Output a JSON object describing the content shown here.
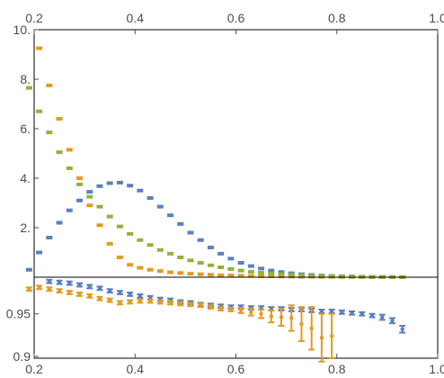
{
  "chart_data": [
    {
      "type": "scatter",
      "panel": "top",
      "xlim": [
        0.2,
        1.0
      ],
      "ylim": [
        0,
        10
      ],
      "x_ticks": [
        "0.2",
        "0.4",
        "0.6",
        "0.8",
        "1.0"
      ],
      "y_ticks": [
        "2.",
        "4.",
        "6.",
        "8.",
        "10."
      ],
      "x_tick_position": "top",
      "grid": false,
      "series": [
        {
          "color": "#5b7fbf",
          "x": [
            0.19,
            0.21,
            0.23,
            0.25,
            0.27,
            0.29,
            0.31,
            0.33,
            0.35,
            0.37,
            0.39,
            0.41,
            0.43,
            0.45,
            0.47,
            0.49,
            0.51,
            0.53,
            0.55,
            0.57,
            0.59,
            0.61,
            0.63,
            0.65,
            0.67,
            0.69,
            0.71,
            0.73,
            0.75,
            0.77,
            0.79,
            0.81,
            0.83,
            0.85,
            0.87,
            0.89,
            0.91,
            0.93
          ],
          "y": [
            0.3,
            1.0,
            1.6,
            2.2,
            2.7,
            3.1,
            3.45,
            3.68,
            3.8,
            3.82,
            3.7,
            3.5,
            3.2,
            2.85,
            2.5,
            2.15,
            1.8,
            1.5,
            1.2,
            0.95,
            0.75,
            0.58,
            0.45,
            0.35,
            0.27,
            0.21,
            0.16,
            0.12,
            0.09,
            0.07,
            0.05,
            0.04,
            0.03,
            0.02,
            0.015,
            0.01,
            0.008,
            0.005
          ]
        },
        {
          "color": "#e39b1e",
          "x": [
            0.21,
            0.23,
            0.25,
            0.27,
            0.29,
            0.31,
            0.33,
            0.35,
            0.37,
            0.39,
            0.41,
            0.43,
            0.45,
            0.47,
            0.49,
            0.51,
            0.53,
            0.55,
            0.57,
            0.59,
            0.61,
            0.63,
            0.65,
            0.67,
            0.69,
            0.71,
            0.73,
            0.75,
            0.77,
            0.79,
            0.81,
            0.83,
            0.85,
            0.87,
            0.89,
            0.91,
            0.93
          ],
          "y": [
            9.25,
            7.75,
            6.4,
            5.15,
            4.0,
            2.9,
            2.1,
            1.35,
            0.8,
            0.5,
            0.38,
            0.3,
            0.25,
            0.2,
            0.17,
            0.14,
            0.12,
            0.1,
            0.08,
            0.07,
            0.06,
            0.05,
            0.04,
            0.035,
            0.03,
            0.025,
            0.02,
            0.018,
            0.015,
            0.012,
            0.01,
            0.008,
            0.006,
            0.005,
            0.004,
            0.003,
            0.002
          ]
        },
        {
          "color": "#8eb33b",
          "x": [
            0.19,
            0.21,
            0.23,
            0.25,
            0.27,
            0.29,
            0.31,
            0.33,
            0.35,
            0.37,
            0.39,
            0.41,
            0.43,
            0.45,
            0.47,
            0.49,
            0.51,
            0.53,
            0.55,
            0.57,
            0.59,
            0.61,
            0.63,
            0.65,
            0.67,
            0.69,
            0.71,
            0.73,
            0.75,
            0.77,
            0.79,
            0.81,
            0.83,
            0.85,
            0.87,
            0.89,
            0.91,
            0.93
          ],
          "y": [
            7.65,
            6.7,
            5.85,
            5.05,
            4.4,
            3.75,
            3.25,
            2.85,
            2.45,
            2.05,
            1.75,
            1.5,
            1.3,
            1.1,
            0.95,
            0.8,
            0.68,
            0.58,
            0.48,
            0.4,
            0.33,
            0.27,
            0.22,
            0.18,
            0.15,
            0.12,
            0.1,
            0.08,
            0.06,
            0.05,
            0.04,
            0.03,
            0.025,
            0.02,
            0.015,
            0.01,
            0.008,
            0.005
          ]
        }
      ]
    },
    {
      "type": "scatter",
      "panel": "bottom",
      "xlim": [
        0.2,
        1.0
      ],
      "ylim": [
        0.898,
        0.993
      ],
      "x_ticks": [
        "0.2",
        "0.4",
        "0.6",
        "0.8",
        "1.0"
      ],
      "y_ticks": [
        "0.9",
        "0.95"
      ],
      "x_tick_position": "bottom",
      "grid": false,
      "series": [
        {
          "color": "#5b7fbf",
          "x": [
            0.23,
            0.25,
            0.27,
            0.29,
            0.31,
            0.33,
            0.35,
            0.37,
            0.39,
            0.41,
            0.43,
            0.45,
            0.47,
            0.49,
            0.51,
            0.53,
            0.55,
            0.57,
            0.59,
            0.61,
            0.63,
            0.65,
            0.67,
            0.69,
            0.71,
            0.73,
            0.75,
            0.77,
            0.79,
            0.81,
            0.83,
            0.85,
            0.87,
            0.89,
            0.91,
            0.93
          ],
          "y": [
            0.988,
            0.987,
            0.986,
            0.984,
            0.982,
            0.98,
            0.977,
            0.975,
            0.973,
            0.971,
            0.969,
            0.967,
            0.966,
            0.964,
            0.963,
            0.961,
            0.96,
            0.959,
            0.958,
            0.958,
            0.957,
            0.957,
            0.956,
            0.956,
            0.955,
            0.955,
            0.954,
            0.953,
            0.953,
            0.952,
            0.951,
            0.95,
            0.948,
            0.946,
            0.942,
            0.932
          ],
          "err": [
            0.002,
            0.002,
            0.002,
            0.002,
            0.002,
            0.002,
            0.002,
            0.002,
            0.002,
            0.002,
            0.002,
            0.002,
            0.002,
            0.002,
            0.002,
            0.002,
            0.002,
            0.002,
            0.002,
            0.002,
            0.002,
            0.002,
            0.002,
            0.002,
            0.002,
            0.002,
            0.002,
            0.002,
            0.002,
            0.002,
            0.002,
            0.002,
            0.002,
            0.003,
            0.003,
            0.004
          ]
        },
        {
          "color": "#e39b1e",
          "x": [
            0.19,
            0.21,
            0.23,
            0.25,
            0.27,
            0.29,
            0.31,
            0.33,
            0.35,
            0.37,
            0.39,
            0.41,
            0.43,
            0.45,
            0.47,
            0.49,
            0.51,
            0.53,
            0.55,
            0.57,
            0.59,
            0.61,
            0.63,
            0.65,
            0.67,
            0.69,
            0.71,
            0.73,
            0.75,
            0.77,
            0.79
          ],
          "y": [
            0.979,
            0.981,
            0.979,
            0.977,
            0.975,
            0.973,
            0.971,
            0.968,
            0.966,
            0.963,
            0.964,
            0.965,
            0.965,
            0.964,
            0.963,
            0.962,
            0.961,
            0.96,
            0.958,
            0.956,
            0.955,
            0.954,
            0.952,
            0.95,
            0.947,
            0.946,
            0.945,
            0.938,
            0.933,
            0.922,
            0.924
          ],
          "err": [
            0.002,
            0.002,
            0.002,
            0.002,
            0.002,
            0.002,
            0.002,
            0.002,
            0.002,
            0.002,
            0.002,
            0.002,
            0.002,
            0.002,
            0.002,
            0.002,
            0.002,
            0.002,
            0.002,
            0.002,
            0.002,
            0.003,
            0.004,
            0.005,
            0.007,
            0.01,
            0.015,
            0.02,
            0.025,
            0.028,
            0.026
          ]
        }
      ]
    }
  ]
}
